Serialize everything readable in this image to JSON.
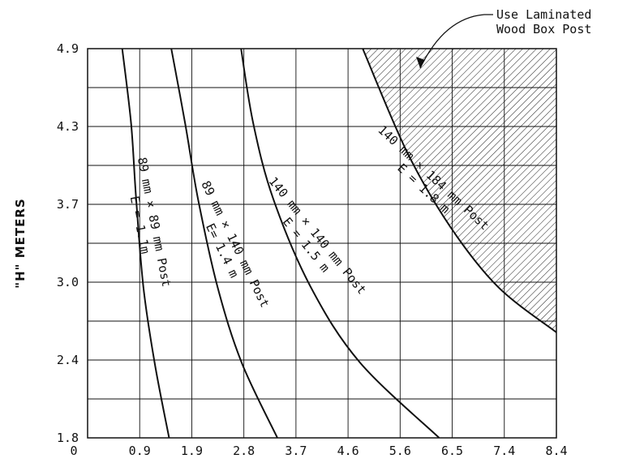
{
  "chart_data": {
    "type": "line",
    "title": "",
    "xlabel": "",
    "ylabel": "\"H\" METERS",
    "xlim": [
      0,
      8.4
    ],
    "ylim": [
      1.8,
      4.9
    ],
    "x_ticks": [
      "0",
      "0.9",
      "1.9",
      "2.8",
      "3.7",
      "4.6",
      "5.6",
      "6.5",
      "7.4",
      "8.4"
    ],
    "y_ticks": [
      "1.8",
      "2.4",
      "3.0",
      "3.7",
      "4.3",
      "4.9"
    ],
    "grid": true,
    "series": [
      {
        "x": [
          1.46,
          1.2,
          1.0,
          0.87,
          0.78,
          0.62
        ],
        "y": [
          1.8,
          2.4,
          3.0,
          3.7,
          4.3,
          4.9
        ],
        "label_lines": [
          "89 mm × 89 mm Post",
          "E = 1.1m"
        ]
      },
      {
        "x": [
          3.4,
          2.76,
          2.33,
          1.98,
          1.75,
          1.5
        ],
        "y": [
          1.8,
          2.4,
          3.0,
          3.7,
          4.3,
          4.9
        ],
        "label_lines": [
          "89 mm × 140 mm Post",
          "E= 1.4 m"
        ]
      },
      {
        "x": [
          6.3,
          4.88,
          4.0,
          3.33,
          2.97,
          2.75
        ],
        "y": [
          1.8,
          2.4,
          3.0,
          3.7,
          4.3,
          4.9
        ],
        "label_lines": [
          "140 mm × 140 mm Post",
          "E = 1.5 m"
        ]
      },
      {
        "x": [
          8.4,
          7.36,
          6.5,
          5.72,
          4.93
        ],
        "y": [
          2.64,
          3.0,
          3.48,
          4.08,
          4.9
        ],
        "label_lines": [
          "140 mm × 184 mm Post",
          "E = 1.8 m"
        ]
      }
    ],
    "shaded_region": {
      "label_lines": [
        "Use Laminated",
        "Wood Box Post"
      ],
      "pattern": "hatched"
    }
  }
}
